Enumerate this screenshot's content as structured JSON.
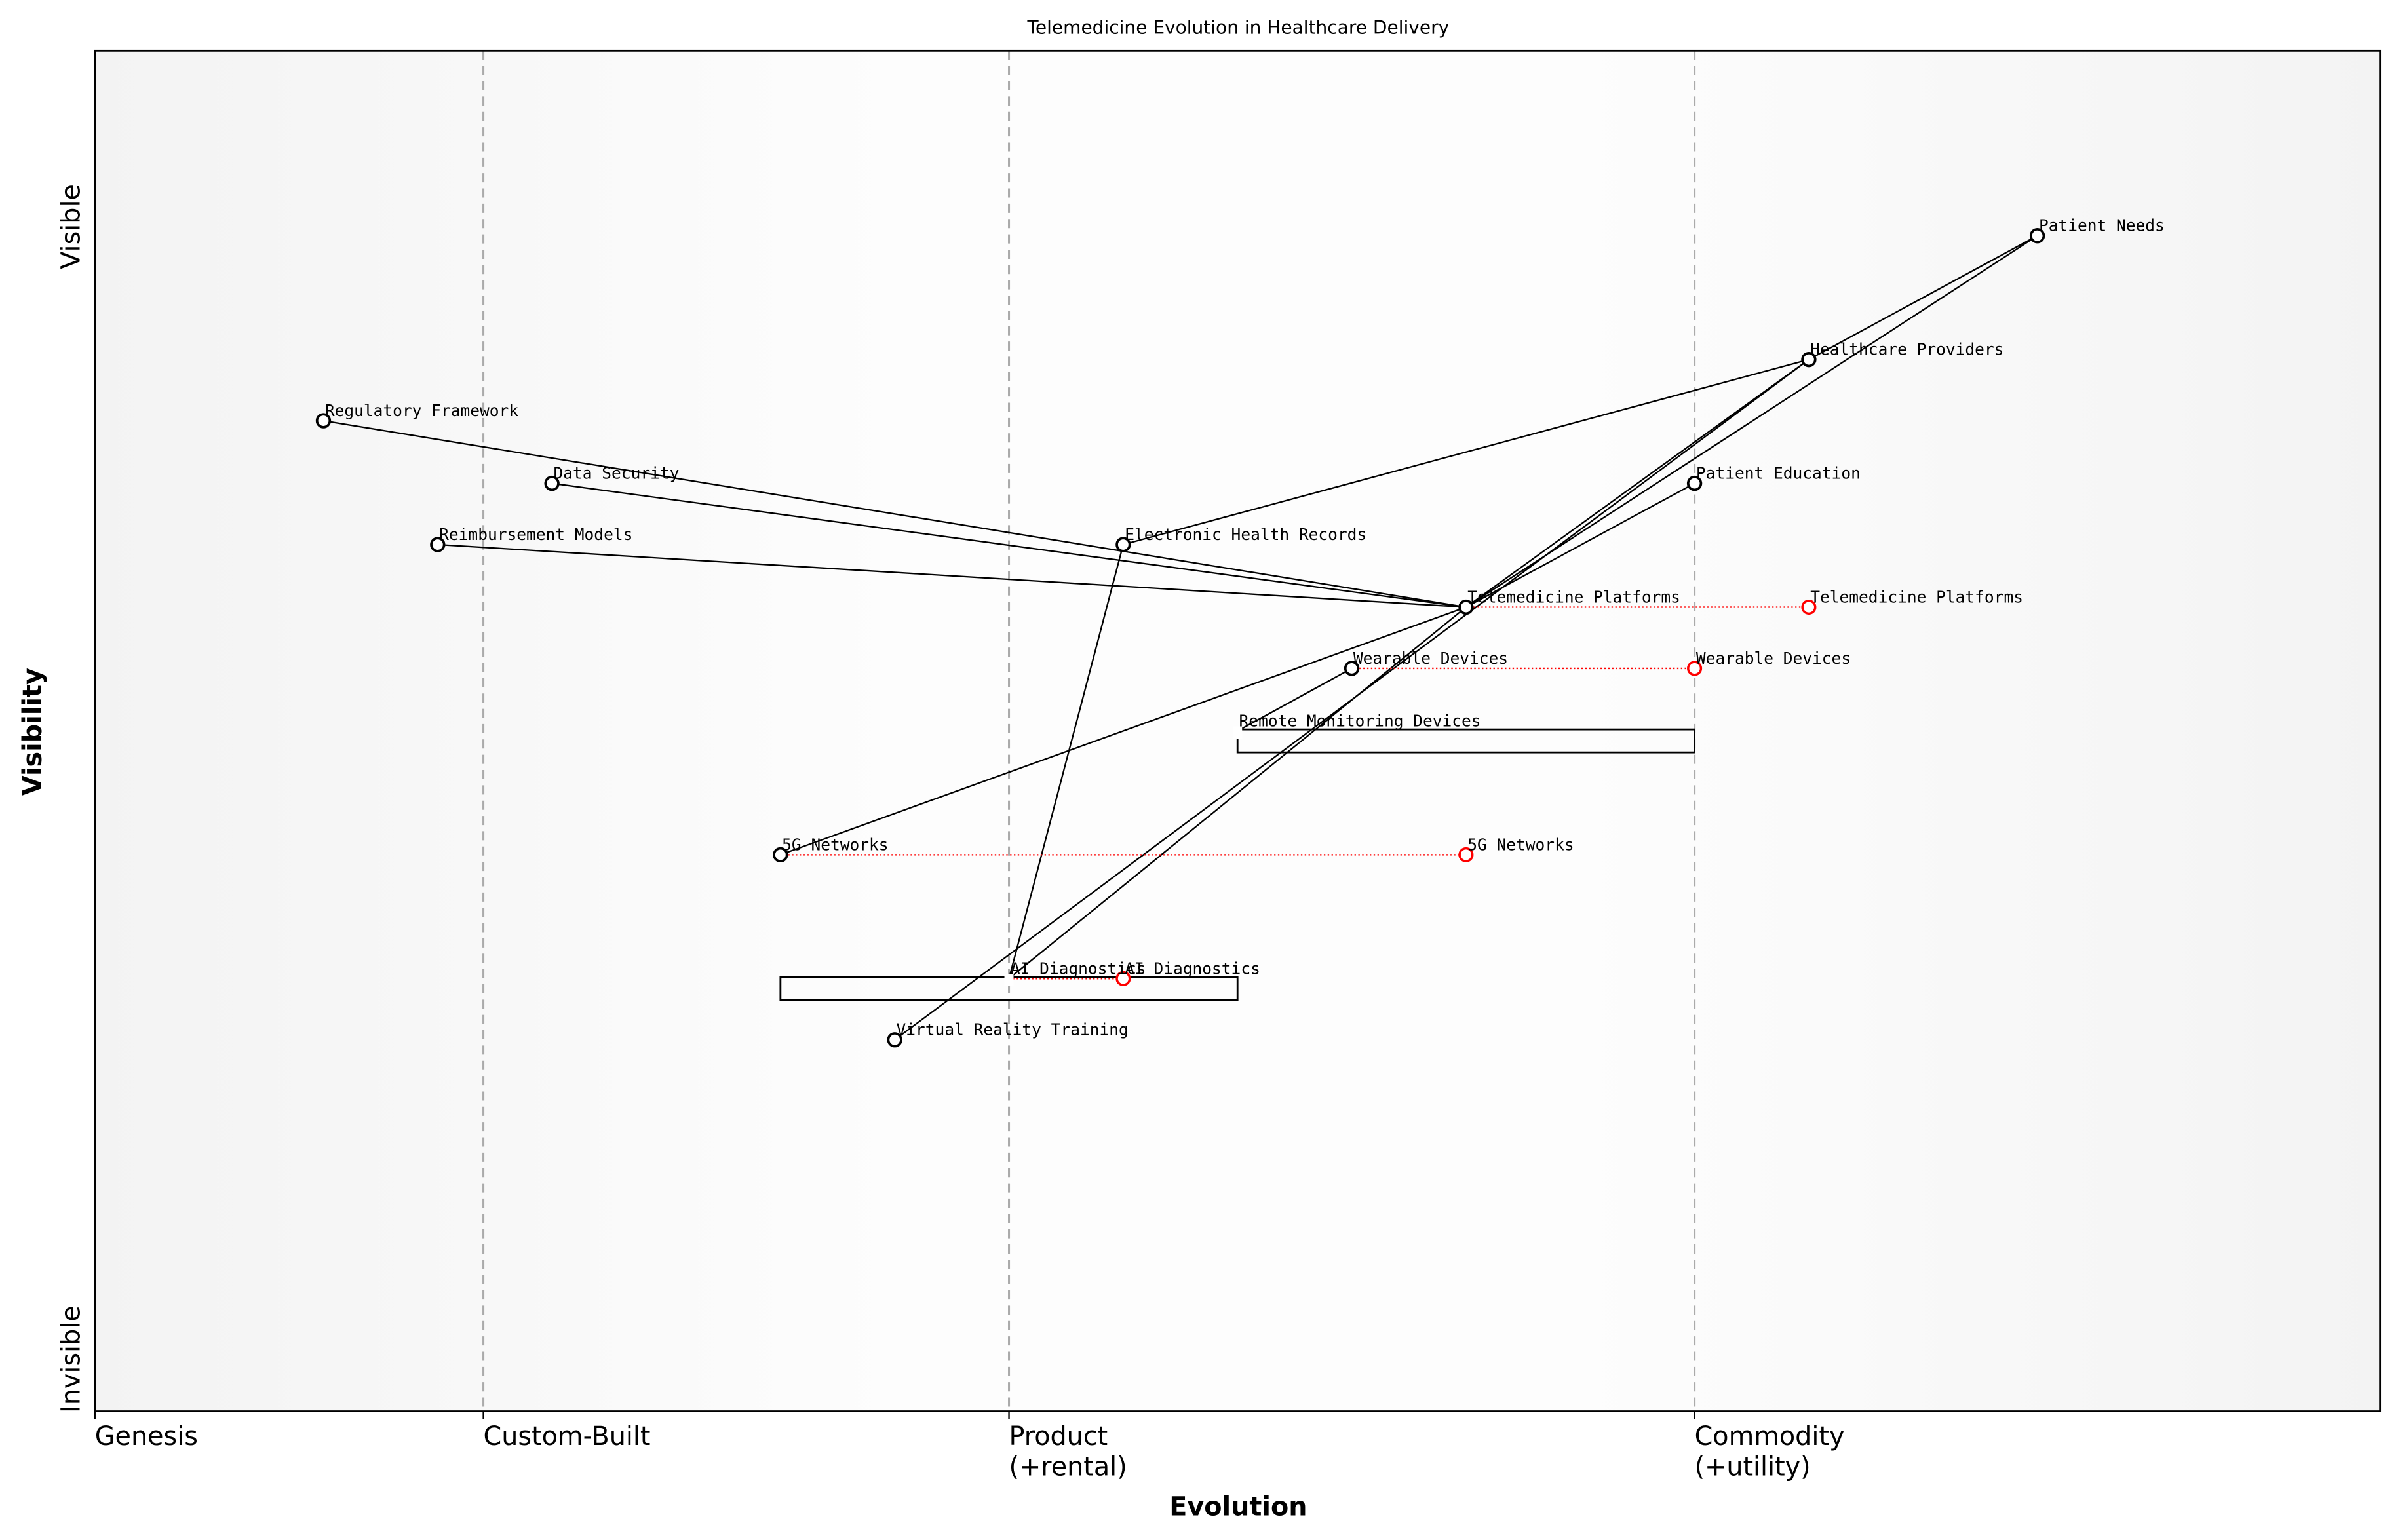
{
  "chart_data": {
    "type": "scatter",
    "title": "Telemedicine Evolution in Healthcare Delivery",
    "xlabel": "Evolution",
    "ylabel": "Visibility",
    "xlim": [
      0,
      1
    ],
    "ylim": [
      0,
      1
    ],
    "grid": false,
    "stage_ticks": [
      {
        "x": 0.0,
        "label": "Genesis"
      },
      {
        "x": 0.17,
        "label": "Custom-Built"
      },
      {
        "x": 0.4,
        "label": "Product\n(+rental)"
      },
      {
        "x": 0.7,
        "label": "Commodity\n(+utility)"
      }
    ],
    "stage_lines": [
      0.17,
      0.4,
      0.7
    ],
    "y_tick_labels": {
      "top": "Visible",
      "bottom": "Invisible"
    },
    "components": [
      {
        "name": "Patient Needs",
        "x": 0.85,
        "y": 0.864
      },
      {
        "name": "Healthcare Providers",
        "x": 0.75,
        "y": 0.773
      },
      {
        "name": "Patient Education",
        "x": 0.7,
        "y": 0.682
      },
      {
        "name": "Electronic Health Records",
        "x": 0.45,
        "y": 0.637
      },
      {
        "name": "Telemedicine Platforms",
        "x": 0.6,
        "y": 0.591
      },
      {
        "name": "Wearable Devices",
        "x": 0.55,
        "y": 0.546
      },
      {
        "name": "Remote Monitoring Devices",
        "x": 0.5,
        "y": 0.5,
        "hidden": true
      },
      {
        "name": "5G Networks",
        "x": 0.3,
        "y": 0.409
      },
      {
        "name": "AI Diagnostics",
        "x": 0.4,
        "y": 0.318,
        "hidden": true
      },
      {
        "name": "Virtual Reality Training",
        "x": 0.35,
        "y": 0.273
      },
      {
        "name": "Regulatory Framework",
        "x": 0.1,
        "y": 0.728
      },
      {
        "name": "Data Security",
        "x": 0.2,
        "y": 0.682
      },
      {
        "name": "Reimbursement Models",
        "x": 0.15,
        "y": 0.637
      }
    ],
    "links": [
      [
        "Patient Needs",
        "Healthcare Providers"
      ],
      [
        "Patient Needs",
        "Telemedicine Platforms"
      ],
      [
        "Healthcare Providers",
        "Electronic Health Records"
      ],
      [
        "Healthcare Providers",
        "Telemedicine Platforms"
      ],
      [
        "Healthcare Providers",
        "Virtual Reality Training"
      ],
      [
        "Telemedicine Platforms",
        "Patient Education"
      ],
      [
        "Telemedicine Platforms",
        "Regulatory Framework"
      ],
      [
        "Telemedicine Platforms",
        "Data Security"
      ],
      [
        "Telemedicine Platforms",
        "Reimbursement Models"
      ],
      [
        "Telemedicine Platforms",
        "5G Networks"
      ],
      [
        "Telemedicine Platforms",
        "AI Diagnostics"
      ],
      [
        "Electronic Health Records",
        "AI Diagnostics"
      ],
      [
        "Wearable Devices",
        "Remote Monitoring Devices"
      ]
    ],
    "evolutions": [
      {
        "name": "Telemedicine Platforms",
        "from": 0.6,
        "to": 0.75,
        "y": 0.591
      },
      {
        "name": "Wearable Devices",
        "from": 0.55,
        "to": 0.7,
        "y": 0.546
      },
      {
        "name": "5G Networks",
        "from": 0.3,
        "to": 0.6,
        "y": 0.409
      },
      {
        "name": "AI Diagnostics",
        "from": 0.4,
        "to": 0.45,
        "y": 0.318
      }
    ],
    "pipelines": [
      {
        "name": "Remote Monitoring Devices",
        "x_start": 0.5,
        "x_end": 0.7,
        "y": 0.5
      },
      {
        "name": "AI Diagnostics",
        "x_start": 0.3,
        "x_end": 0.5,
        "y": 0.318
      }
    ],
    "colors": {
      "component": "#000000",
      "evolved": "#ff0000",
      "stage_line": "#aaaaaa",
      "edge_bg": "#f3f3f3"
    }
  }
}
